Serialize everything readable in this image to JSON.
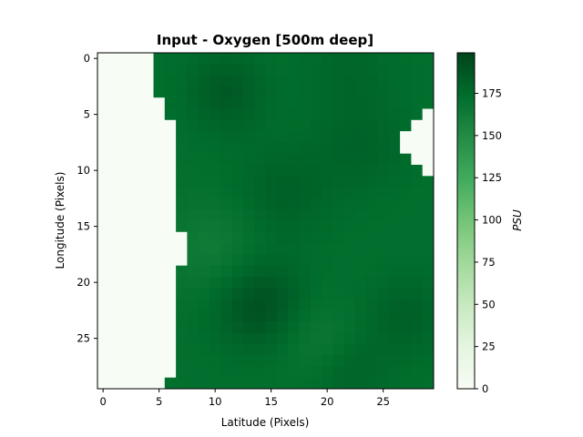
{
  "chart_data": {
    "type": "heatmap",
    "title": "Input - Oxygen [500m deep]",
    "xlabel": "Latitude (Pixels)",
    "ylabel": "Longitude (Pixels)",
    "colorbar_label": "PSU",
    "colormap": "Greens",
    "colormap_colors": [
      "#f7fcf5",
      "#e5f5e0",
      "#c7e9c0",
      "#a1d99b",
      "#74c476",
      "#41ab5d",
      "#238b45",
      "#006d2c",
      "#00441b"
    ],
    "nan_color": "#f7fcf5",
    "vmin": 0,
    "vmax": 199,
    "xlim": [
      -0.5,
      29.5
    ],
    "ylim": [
      29.5,
      -0.5
    ],
    "x_ticks": [
      0,
      5,
      10,
      15,
      20,
      25
    ],
    "y_ticks": [
      0,
      5,
      10,
      15,
      20,
      25
    ],
    "colorbar_ticks": [
      0,
      25,
      50,
      75,
      100,
      125,
      150,
      175
    ],
    "grid_size": [
      30,
      30
    ],
    "land_first_ocean_column_by_row": [
      5,
      5,
      5,
      5,
      6,
      6,
      7,
      7,
      7,
      7,
      7,
      7,
      7,
      7,
      7,
      7,
      8,
      8,
      8,
      7,
      7,
      7,
      7,
      7,
      7,
      7,
      7,
      7,
      7,
      6
    ],
    "land_right_edge_cells": [
      [
        5,
        29
      ],
      [
        6,
        28
      ],
      [
        6,
        29
      ],
      [
        7,
        27
      ],
      [
        7,
        28
      ],
      [
        7,
        29
      ],
      [
        8,
        27
      ],
      [
        8,
        28
      ],
      [
        8,
        29
      ],
      [
        9,
        28
      ],
      [
        9,
        29
      ],
      [
        10,
        29
      ]
    ],
    "ocean_value_baseline": 172,
    "ocean_value_anomalies": [
      {
        "row": 3,
        "col": 11,
        "amplitude": 14,
        "spread": 2.5
      },
      {
        "row": 12,
        "col": 16,
        "amplitude": 10,
        "spread": 3.0
      },
      {
        "row": 8,
        "col": 23,
        "amplitude": 8,
        "spread": 3.0
      },
      {
        "row": 22,
        "col": 14,
        "amplitude": 20,
        "spread": 2.8
      },
      {
        "row": 23,
        "col": 27,
        "amplitude": 10,
        "spread": 2.5
      },
      {
        "row": 28,
        "col": 22,
        "amplitude": 8,
        "spread": 2.5
      },
      {
        "row": 17,
        "col": 10,
        "amplitude": -10,
        "spread": 3.0
      },
      {
        "row": 25,
        "col": 19,
        "amplitude": -9,
        "spread": 2.5
      },
      {
        "row": 1,
        "col": 22,
        "amplitude": 6,
        "spread": 3.0
      }
    ]
  }
}
